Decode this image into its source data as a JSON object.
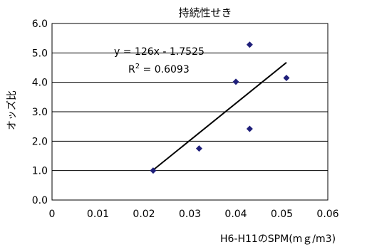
{
  "chart_data": {
    "type": "scatter",
    "title": "持続性せき",
    "xlabel": "H6-H11のSPM(mｇ/m3)",
    "ylabel": "オッズ比",
    "xlim": [
      0,
      0.06
    ],
    "ylim": [
      0,
      6.0
    ],
    "x_ticks": [
      "0",
      "0.01",
      "0.02",
      "0.03",
      "0.04",
      "0.05",
      "0.06"
    ],
    "y_ticks": [
      "0.0",
      "1.0",
      "2.0",
      "3.0",
      "4.0",
      "5.0",
      "6.0"
    ],
    "x_tick_values": [
      0,
      0.01,
      0.02,
      0.03,
      0.04,
      0.05,
      0.06
    ],
    "y_tick_values": [
      0,
      1,
      2,
      3,
      4,
      5,
      6
    ],
    "grid": "horizontal",
    "points": [
      {
        "x": 0.022,
        "y": 1.0
      },
      {
        "x": 0.032,
        "y": 1.75
      },
      {
        "x": 0.04,
        "y": 4.02
      },
      {
        "x": 0.043,
        "y": 5.28
      },
      {
        "x": 0.043,
        "y": 2.42
      },
      {
        "x": 0.051,
        "y": 4.15
      }
    ],
    "trendline": {
      "slope": 126,
      "intercept": -1.7525,
      "x_range": [
        0.022,
        0.051
      ],
      "equation": "y = 126x - 1.7525",
      "r2_prefix": "R",
      "r2_sup": "2",
      "r2_value": " = 0.6093"
    },
    "colors": {
      "marker": "#1f1f7a",
      "line": "#000000",
      "grid": "#000000"
    }
  }
}
